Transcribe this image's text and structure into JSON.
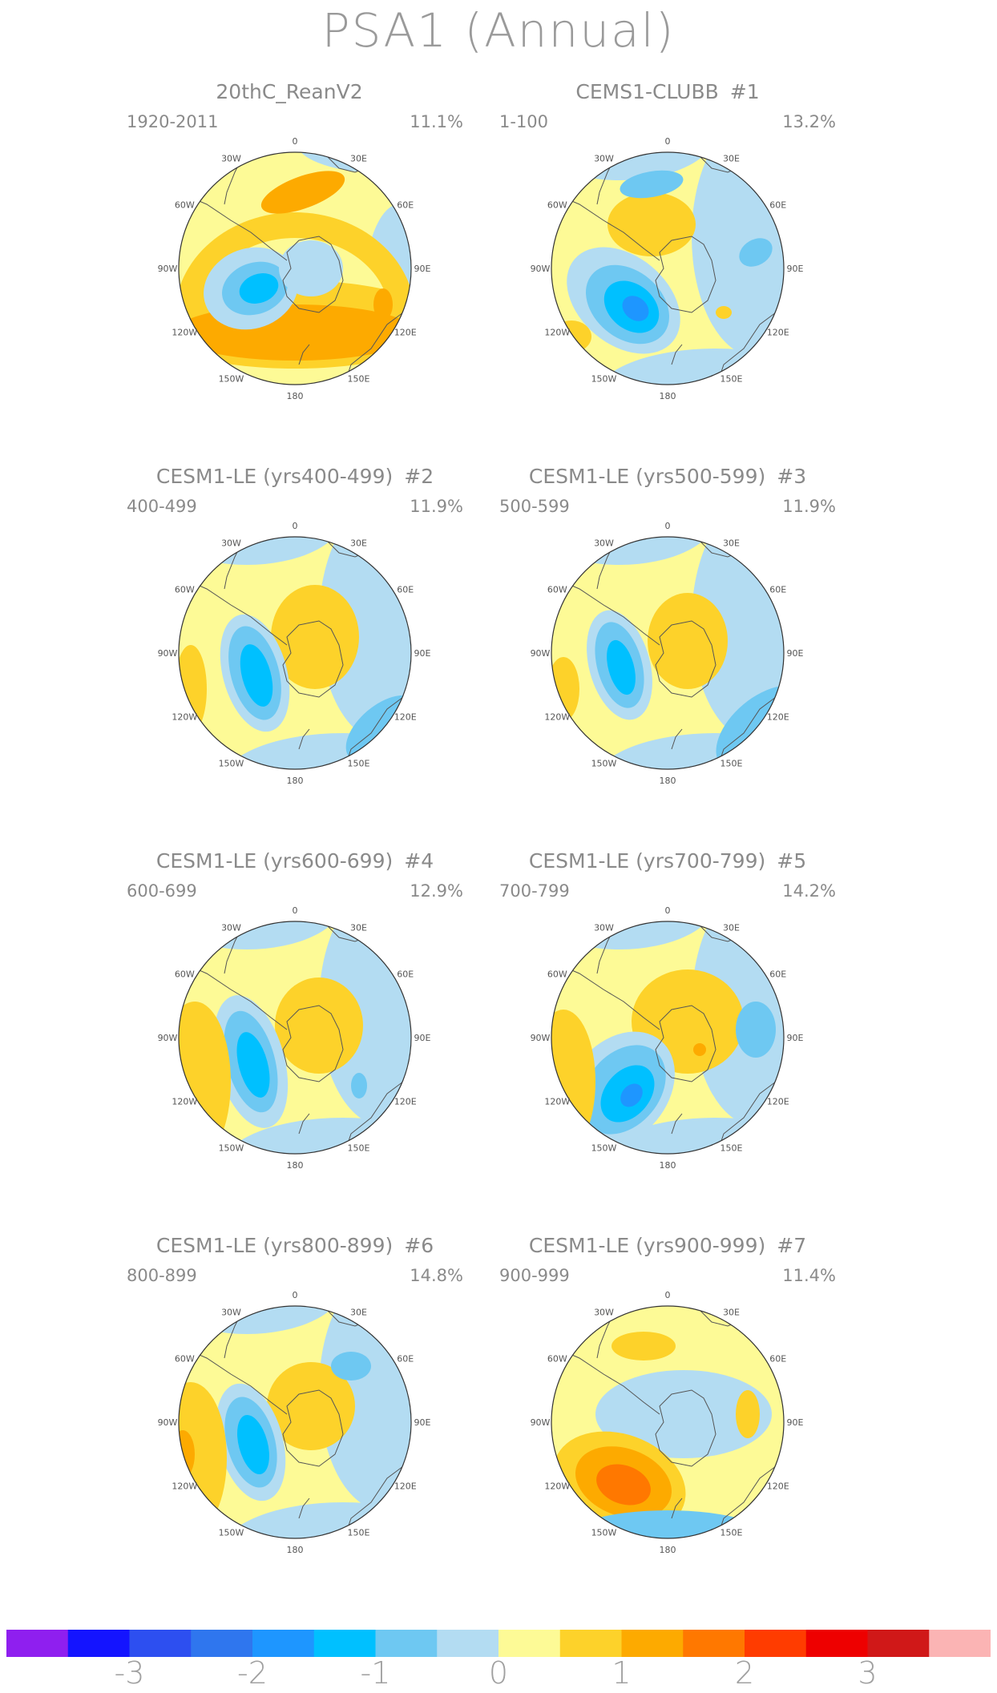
{
  "title": "PSA1 (Annual)",
  "panels": [
    {
      "title": "20thC_ReanV2",
      "number": "",
      "years": "1920-2011",
      "percent": "11.1%"
    },
    {
      "title": "CEMS1-CLUBB",
      "number": "#1",
      "years": "1-100",
      "percent": "13.2%"
    },
    {
      "title": "CESM1-LE (yrs400-499)",
      "number": "#2",
      "years": "400-499",
      "percent": "11.9%"
    },
    {
      "title": "CESM1-LE (yrs500-599)",
      "number": "#3",
      "years": "500-599",
      "percent": "11.9%"
    },
    {
      "title": "CESM1-LE (yrs600-699)",
      "number": "#4",
      "years": "600-699",
      "percent": "12.9%"
    },
    {
      "title": "CESM1-LE (yrs700-799)",
      "number": "#5",
      "years": "700-799",
      "percent": "14.2%"
    },
    {
      "title": "CESM1-LE (yrs800-899)",
      "number": "#6",
      "years": "800-899",
      "percent": "14.8%"
    },
    {
      "title": "CESM1-LE (yrs900-999)",
      "number": "#7",
      "years": "900-999",
      "percent": "11.4%"
    }
  ],
  "map_longitude_labels": [
    "0",
    "30E",
    "60E",
    "90E",
    "120E",
    "150E",
    "180",
    "150W",
    "120W",
    "90W",
    "60W",
    "30W"
  ],
  "chart_data": {
    "type": "heatmap",
    "projection": "south polar stereographic",
    "colorbar": {
      "colors": [
        "#8f1fef",
        "#1414ff",
        "#2d4ff0",
        "#2f76ee",
        "#1e96ff",
        "#00c0ff",
        "#6ec8f2",
        "#b3dcf2",
        "#fdfa96",
        "#fdd22a",
        "#fdaa00",
        "#ff7800",
        "#ff3c00",
        "#ee0000",
        "#d01818",
        "#fbb4b4"
      ],
      "tick_labels": [
        "-3",
        "-2",
        "-1",
        "0",
        "1",
        "2",
        "3"
      ],
      "tick_values": [
        -3,
        -2,
        -1,
        0,
        1,
        2,
        3
      ],
      "bounds": [
        -3.5,
        -3,
        -2.5,
        -2,
        -1.5,
        -1,
        -0.5,
        0,
        0.5,
        1,
        1.5,
        2,
        2.5,
        3,
        3.5
      ]
    }
  }
}
